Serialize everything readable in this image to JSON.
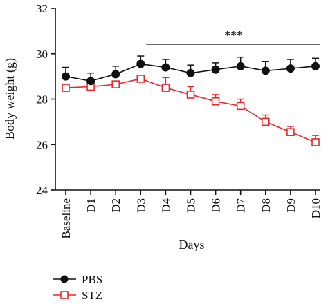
{
  "chart_data": {
    "type": "line",
    "title": "",
    "xlabel": "Days",
    "ylabel": "Body weight (g)",
    "categories": [
      "Baseline",
      "D1",
      "D2",
      "D3",
      "D4",
      "D5",
      "D6",
      "D7",
      "D8",
      "D9",
      "D10"
    ],
    "ylim": [
      24,
      32
    ],
    "yticks": [
      24,
      26,
      28,
      30,
      32
    ],
    "grid": false,
    "legend_position": "bottom-left",
    "significance": {
      "label": "***",
      "from": "D3",
      "to": "D10"
    },
    "series": [
      {
        "name": "PBS",
        "color": "#111111",
        "marker": "filled-circle",
        "values": [
          29.0,
          28.8,
          29.1,
          29.55,
          29.4,
          29.15,
          29.3,
          29.45,
          29.25,
          29.35,
          29.45
        ],
        "errors": [
          0.4,
          0.35,
          0.35,
          0.35,
          0.35,
          0.35,
          0.3,
          0.4,
          0.4,
          0.4,
          0.35
        ]
      },
      {
        "name": "STZ",
        "color": "#e8262d",
        "marker": "open-square",
        "values": [
          28.5,
          28.55,
          28.65,
          28.9,
          28.5,
          28.2,
          27.9,
          27.7,
          27.0,
          26.55,
          26.1
        ],
        "errors": [
          0.0,
          0.0,
          0.0,
          0.0,
          0.45,
          0.35,
          0.3,
          0.3,
          0.3,
          0.25,
          0.3
        ]
      }
    ]
  }
}
